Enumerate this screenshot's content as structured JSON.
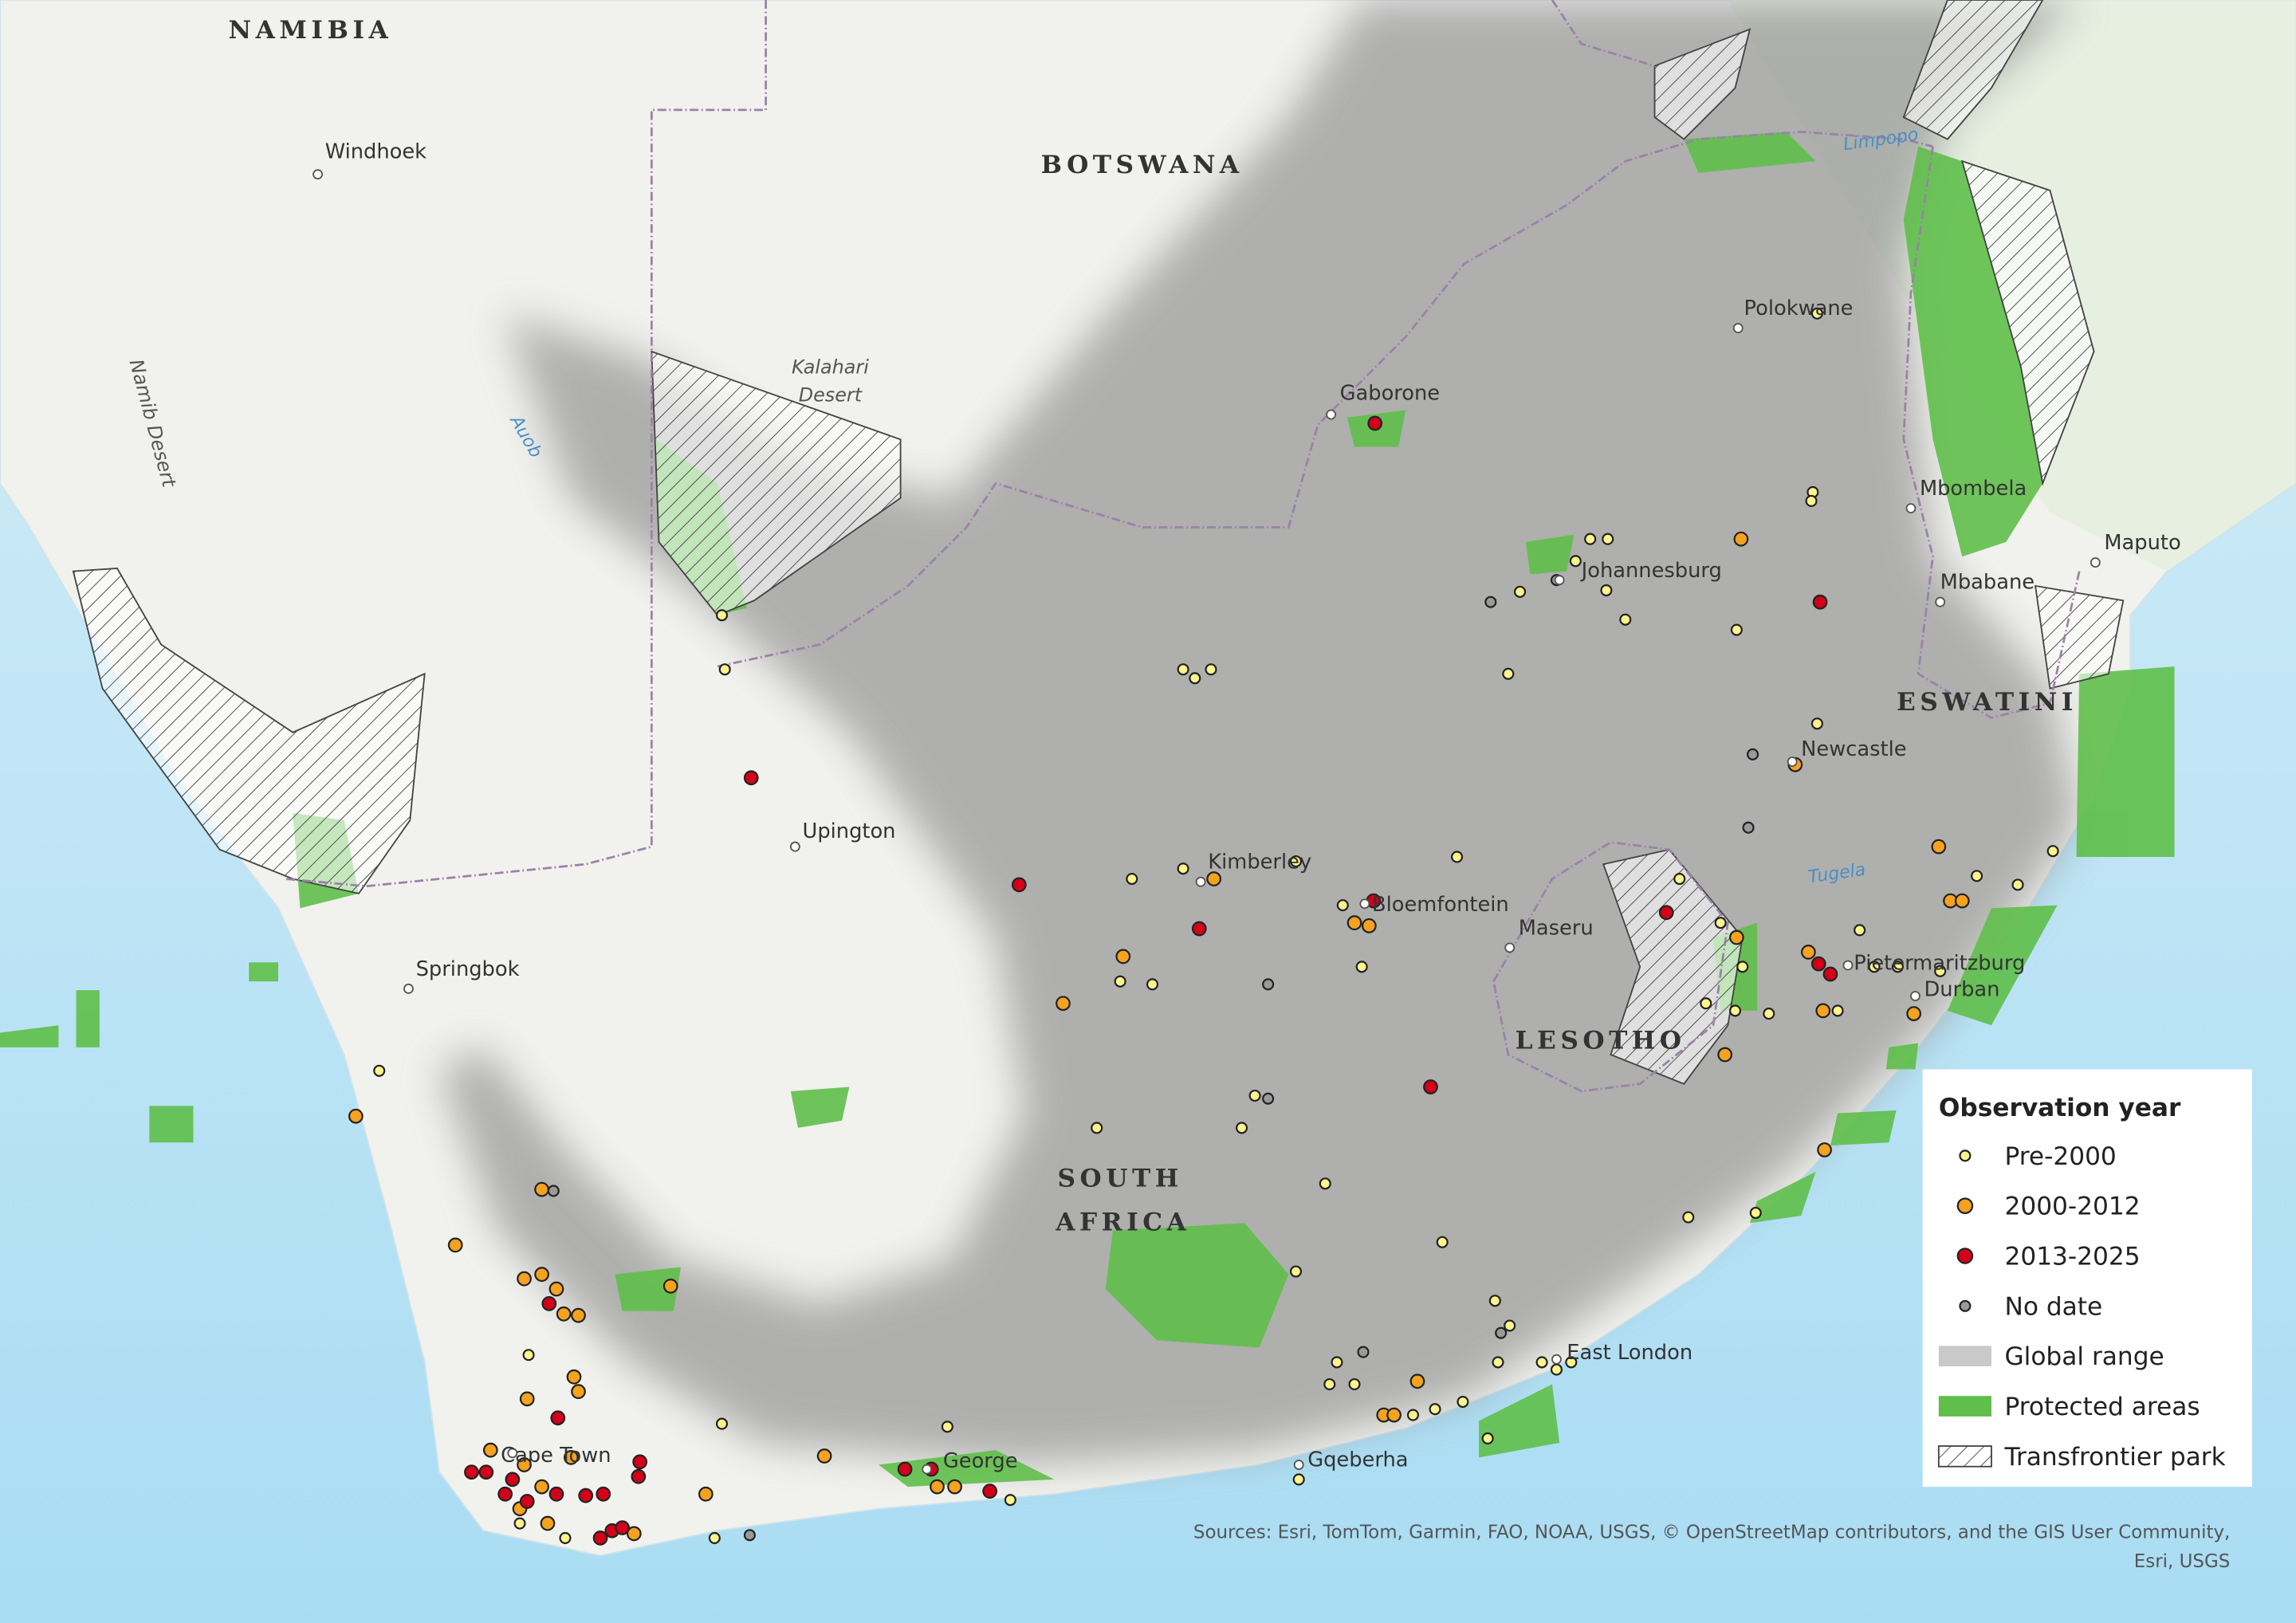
{
  "map": {
    "countries": [
      "NAMIBIA",
      "BOTSWANA",
      "SOUTH",
      "AFRICA",
      "LESOTHO",
      "ESWATINI"
    ],
    "places": [
      "Windhoek",
      "Gaborone",
      "Polokwane",
      "Mbombela",
      "Maputo",
      "Mbabane",
      "Johannesburg",
      "Newcastle",
      "Upington",
      "Kimberley",
      "Bloemfontein",
      "Maseru",
      "Pietermaritzburg",
      "Durban",
      "Springbok",
      "East London",
      "Gqeberha",
      "George",
      "Cape Town"
    ],
    "features": [
      "Kalahari",
      "Desert",
      "Namib Desert",
      "Auob",
      "Limpopo",
      "Tugela"
    ],
    "legend": {
      "title": "Observation year",
      "items": [
        "Pre-2000",
        "2000-2012",
        "2013-2025",
        "No date",
        "Global range",
        "Protected areas",
        "Transfrontier park"
      ]
    },
    "credits": [
      "Sources: Esri, TomTom, Garmin, FAO, NOAA, USGS, © OpenStreetMap contributors, and the GIS User Community,",
      "Esri, USGS"
    ]
  }
}
